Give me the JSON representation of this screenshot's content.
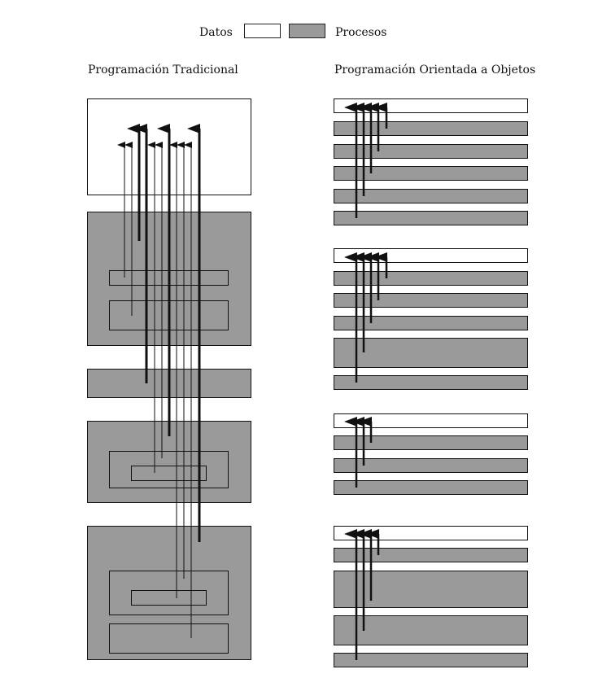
{
  "legend": {
    "datos_label": "Datos",
    "procesos_label": "Procesos",
    "datos_color": "#ffffff",
    "procesos_color": "#9a9a9a"
  },
  "traditional": {
    "title": "Programación Tradicional"
  },
  "object_oriented": {
    "title": "Programación Orientada a Objetos",
    "objects": [
      {
        "processes": 5
      },
      {
        "processes": 5
      },
      {
        "processes": 3
      },
      {
        "processes": 4
      }
    ]
  },
  "colors": {
    "stroke": "#111111",
    "process_fill": "#9a9a9a",
    "data_fill": "#ffffff"
  }
}
